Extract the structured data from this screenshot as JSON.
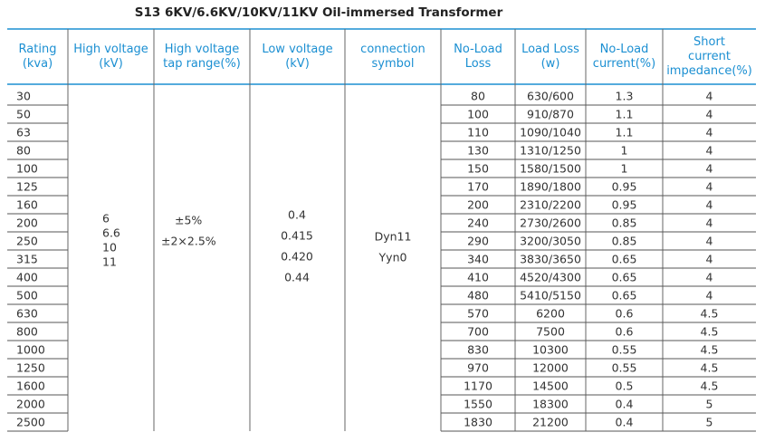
{
  "title": "S13 6KV/6.6KV/10KV/11KV  Oil-immersed Transformer",
  "table": {
    "headers": [
      [
        "Rating",
        "(kva)"
      ],
      [
        "High voltage",
        "(kV)"
      ],
      [
        "High voltage",
        "tap range(%)"
      ],
      [
        "Low voltage",
        "(kV)"
      ],
      [
        "connection",
        "symbol"
      ],
      [
        "No-Load",
        "Loss"
      ],
      [
        "Load Loss",
        "(w)"
      ],
      [
        "No-Load",
        "current(%)"
      ],
      [
        "Short",
        "current",
        "impedance(%)"
      ]
    ],
    "rows": [
      [
        "30",
        "80",
        "630/600",
        "1.3",
        "4"
      ],
      [
        "50",
        "100",
        "910/870",
        "1.1",
        "4"
      ],
      [
        "63",
        "110",
        "1090/1040",
        "1.1",
        "4"
      ],
      [
        "80",
        "130",
        "1310/1250",
        "1",
        "4"
      ],
      [
        "100",
        "150",
        "1580/1500",
        "1",
        "4"
      ],
      [
        "125",
        "170",
        "1890/1800",
        "0.95",
        "4"
      ],
      [
        "160",
        "200",
        "2310/2200",
        "0.95",
        "4"
      ],
      [
        "200",
        "240",
        "2730/2600",
        "0.85",
        "4"
      ],
      [
        "250",
        "290",
        "3200/3050",
        "0.85",
        "4"
      ],
      [
        "315",
        "340",
        "3830/3650",
        "0.65",
        "4"
      ],
      [
        "400",
        "410",
        "4520/4300",
        "0.65",
        "4"
      ],
      [
        "500",
        "480",
        "5410/5150",
        "0.65",
        "4"
      ],
      [
        "630",
        "570",
        "6200",
        "0.6",
        "4.5"
      ],
      [
        "800",
        "700",
        "7500",
        "0.6",
        "4.5"
      ],
      [
        "1000",
        "830",
        "10300",
        "0.55",
        "4.5"
      ],
      [
        "1250",
        "970",
        "12000",
        "0.55",
        "4.5"
      ],
      [
        "1600",
        "1170",
        "14500",
        "0.5",
        "4.5"
      ],
      [
        "2000",
        "1550",
        "18300",
        "0.4",
        "5"
      ],
      [
        "2500",
        "1830",
        "21200",
        "0.4",
        "5"
      ]
    ],
    "high_voltage": [
      "6",
      "6.6",
      "10",
      "11"
    ],
    "tap_range": [
      "±5%",
      "±2×2.5%"
    ],
    "low_voltage": [
      "0.4",
      "0.415",
      "0.420",
      "0.44"
    ],
    "connection": [
      "Dyn11",
      "Yyn0"
    ]
  }
}
